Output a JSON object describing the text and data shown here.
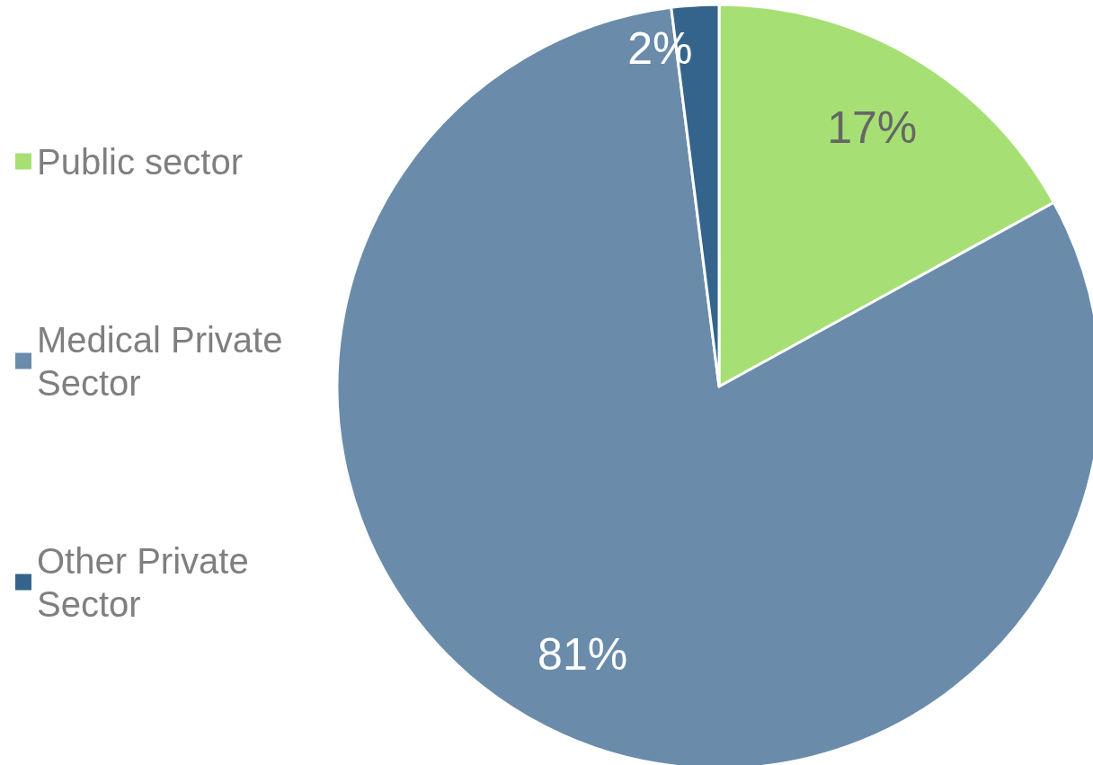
{
  "chart_data": {
    "type": "pie",
    "categories": [
      "Public sector",
      "Medical Private Sector",
      "Other Private Sector"
    ],
    "values": [
      17,
      81,
      2
    ],
    "colors": [
      "#a6e074",
      "#6a8caa",
      "#34648c"
    ],
    "value_labels": [
      "17%",
      "81%",
      "2%"
    ],
    "legend": "left"
  }
}
